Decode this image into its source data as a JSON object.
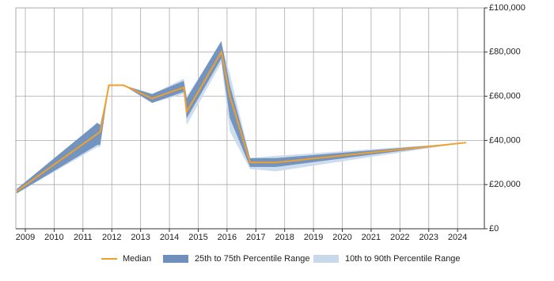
{
  "chart_data": {
    "type": "line",
    "x": [
      2008.7,
      2011.5,
      2011.6,
      2011.9,
      2012.4,
      2013.4,
      2014.5,
      2014.6,
      2015.8,
      2016.1,
      2016.8,
      2017.7,
      2024.3
    ],
    "xlim": [
      2008.67,
      2024.93
    ],
    "xticks": [
      2009,
      2010,
      2011,
      2012,
      2013,
      2014,
      2015,
      2016,
      2017,
      2018,
      2019,
      2020,
      2021,
      2022,
      2023,
      2024
    ],
    "ylim": [
      0,
      100000
    ],
    "yticks": [
      {
        "value": 0,
        "label": "£0"
      },
      {
        "value": 20000,
        "label": "£20,000"
      },
      {
        "value": 40000,
        "label": "£40,000"
      },
      {
        "value": 60000,
        "label": "£60,000"
      },
      {
        "value": 80000,
        "label": "£80,000"
      },
      {
        "value": 100000,
        "label": "£100,000"
      }
    ],
    "grid": true,
    "legend": "bottom",
    "bands": [
      {
        "name": "25th to 75th Percentile Range",
        "color": "#6f8fbd",
        "lower": [
          16000,
          38000,
          38000,
          65000,
          65000,
          57000,
          62000,
          50000,
          77000,
          50000,
          28000,
          28000,
          39000
        ],
        "upper": [
          18000,
          48000,
          47000,
          65000,
          65000,
          61000,
          67000,
          59000,
          85000,
          65000,
          32000,
          32000,
          39000
        ]
      },
      {
        "name": "10th to 90th Percentile Range",
        "color": "#c9d9ec",
        "lower": [
          16000,
          37000,
          37000,
          65000,
          65000,
          57000,
          61000,
          47000,
          75000,
          44000,
          27000,
          26000,
          39000
        ],
        "upper": [
          18000,
          48000,
          47000,
          65000,
          65000,
          61000,
          68000,
          60000,
          84000,
          70000,
          32000,
          33000,
          39000
        ]
      }
    ],
    "series": [
      {
        "name": "Median",
        "color": "#f0a02a",
        "values": [
          17000,
          43000,
          44000,
          65000,
          65000,
          59000,
          64000,
          53000,
          80000,
          60000,
          30000,
          30000,
          39000
        ]
      }
    ]
  }
}
